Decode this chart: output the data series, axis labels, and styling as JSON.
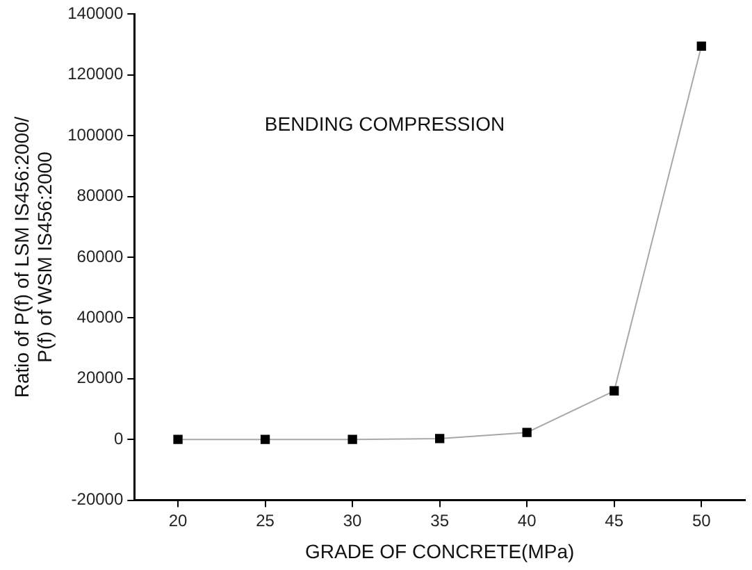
{
  "chart_data": {
    "type": "line",
    "xlabel": "GRADE OF CONCRETE(MPa)",
    "ylabel": "Ratio of P(f) of LSM IS456:2000/\nP(f) of WSM IS456:2000",
    "annotations": [
      "BENDING COMPRESSION"
    ],
    "x": [
      20,
      25,
      30,
      35,
      40,
      45,
      50
    ],
    "series": [
      {
        "color": "#000000",
        "values": [
          0,
          0,
          0,
          300,
          2300,
          16000,
          129500
        ]
      }
    ],
    "xlim": [
      17.5,
      52.5
    ],
    "xticks": [
      20,
      25,
      30,
      35,
      40,
      45,
      50
    ],
    "ylim": [
      -20000,
      140000
    ],
    "yticks": [
      -20000,
      0,
      20000,
      40000,
      60000,
      80000,
      100000,
      120000,
      140000
    ],
    "grid": false,
    "legend": false,
    "marker": "square",
    "line_style": "solid"
  }
}
